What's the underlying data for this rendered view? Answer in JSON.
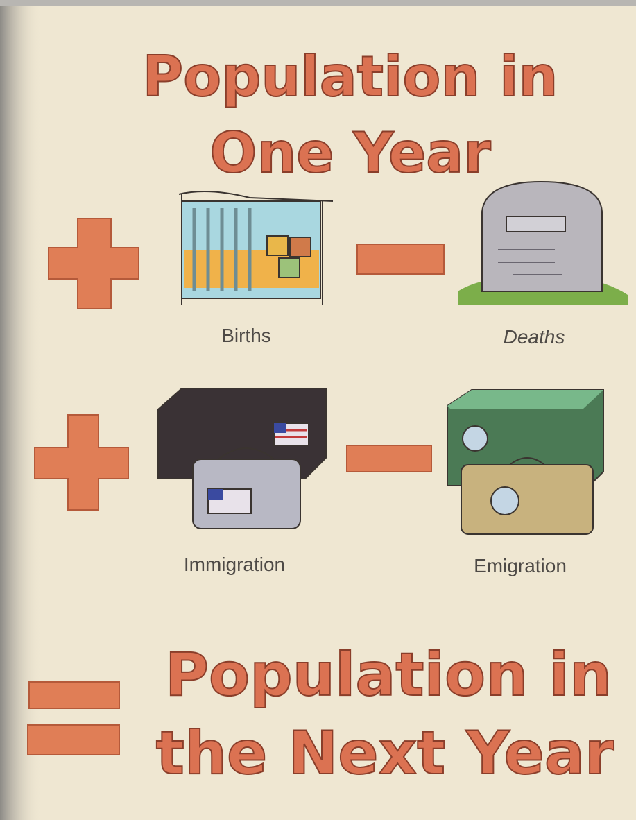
{
  "title": {
    "lines": [
      "Population in",
      "One Year"
    ]
  },
  "terms": [
    {
      "label": "Births"
    },
    {
      "label": "Deaths"
    },
    {
      "label": "Immigration"
    },
    {
      "label": "Emigration"
    }
  ],
  "result": {
    "lines": [
      "Population in",
      "the Next Year"
    ]
  }
}
